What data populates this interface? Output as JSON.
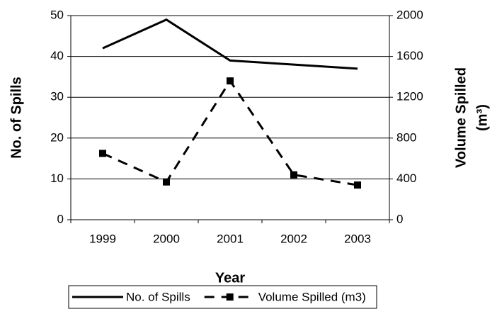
{
  "chart_data": {
    "type": "line",
    "xlabel": "Year",
    "ylabel": "No. of Spills",
    "y2label": [
      "Volume Spilled",
      "(m³)"
    ],
    "categories": [
      "1999",
      "2000",
      "2001",
      "2002",
      "2003"
    ],
    "series": [
      {
        "name": "No. of Spills",
        "color": "#000000",
        "values": [
          42,
          49,
          39,
          38,
          37
        ]
      },
      {
        "name": "Volume Spilled (m3)",
        "color": "#000000",
        "axis": "y2",
        "dashed": true,
        "marker": "square",
        "values": [
          650,
          370,
          1360,
          440,
          340
        ]
      }
    ],
    "ylim": [
      0,
      50
    ],
    "yticks": [
      0,
      10,
      20,
      30,
      40,
      50
    ],
    "y2lim": [
      0,
      2000
    ],
    "y2ticks": [
      0,
      400,
      800,
      1200,
      1600,
      2000
    ],
    "grid": true,
    "legend": "bottom"
  }
}
